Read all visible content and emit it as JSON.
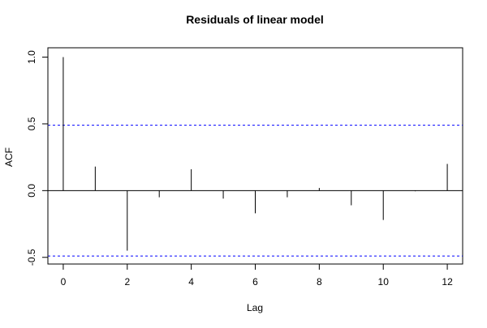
{
  "chart_data": {
    "type": "bar",
    "title": "Residuals of linear model",
    "xlabel": "Lag",
    "ylabel": "ACF",
    "x": [
      0,
      1,
      2,
      3,
      4,
      5,
      6,
      7,
      8,
      9,
      10,
      11,
      12
    ],
    "values": [
      1.0,
      0.18,
      -0.45,
      -0.05,
      0.16,
      -0.06,
      -0.17,
      -0.05,
      0.02,
      -0.11,
      -0.22,
      -0.005,
      0.2
    ],
    "xlim": [
      -0.48,
      12.48
    ],
    "ylim": [
      -0.55,
      1.07
    ],
    "xticks": [
      0,
      2,
      4,
      6,
      8,
      10,
      12
    ],
    "xtick_labels": [
      "0",
      "2",
      "4",
      "6",
      "8",
      "10",
      "12"
    ],
    "yticks": [
      -0.5,
      0.0,
      0.5,
      1.0
    ],
    "ytick_labels": [
      "-0.5",
      "0.0",
      "0.5",
      "1.0"
    ],
    "confidence_bounds": [
      0.49,
      -0.49
    ],
    "confidence_color": "#0000ff",
    "bar_color": "#000000",
    "grid": false,
    "legend": "none"
  }
}
